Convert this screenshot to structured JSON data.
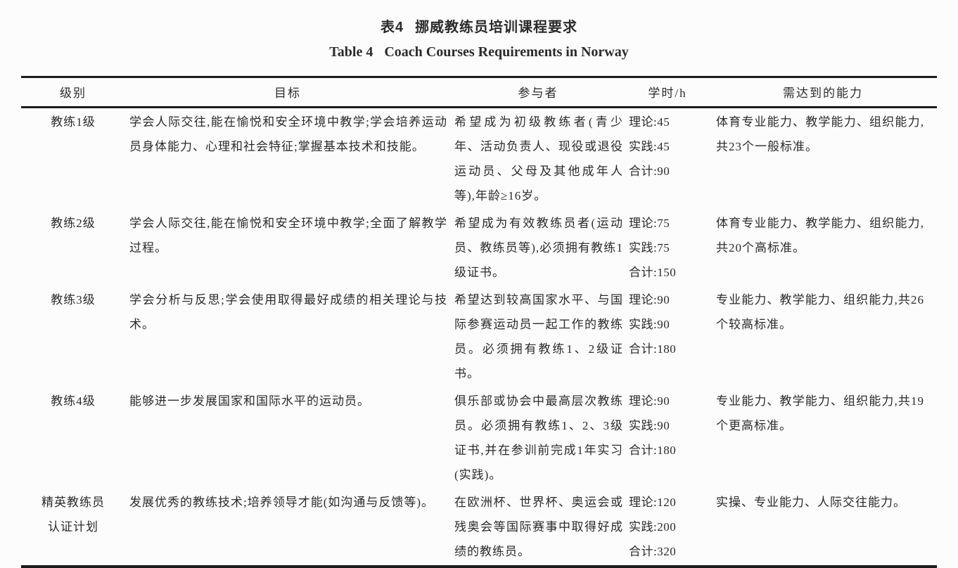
{
  "colors": {
    "background": "#fcfcfc",
    "text": "#2b2b2b",
    "rule": "#1b1b1b"
  },
  "caption": {
    "cn_label": "表4",
    "cn_text": "挪威教练员培训课程要求",
    "en_label": "Table 4",
    "en_text": "Coach Courses Requirements in Norway"
  },
  "table": {
    "headers": [
      "级别",
      "目标",
      "参与者",
      "学时/h",
      "需达到的能力"
    ],
    "rows": [
      {
        "level": "教练1级",
        "goal": "学会人际交往,能在愉悦和安全环境中教学;学会培养运动员身体能力、心理和社会特征;掌握基本技术和技能。",
        "participants": "希望成为初级教练者(青少年、活动负责人、现役或退役运动员、父母及其他成年人等),年龄≥16岁。",
        "hours": "理论:45\n实践:45\n合计:90",
        "competency": "体育专业能力、教学能力、组织能力,共23个一般标准。"
      },
      {
        "level": "教练2级",
        "goal": "学会人际交往,能在愉悦和安全环境中教学;全面了解教学过程。",
        "participants": "希望成为有效教练员者(运动员、教练员等),必须拥有教练1级证书。",
        "hours": "理论:75\n实践:75\n合计:150",
        "competency": "体育专业能力、教学能力、组织能力,共20个高标准。"
      },
      {
        "level": "教练3级",
        "goal": "学会分析与反思;学会使用取得最好成绩的相关理论与技术。",
        "participants": "希望达到较高国家水平、与国际参赛运动员一起工作的教练员。必须拥有教练1、2级证书。",
        "hours": "理论:90\n实践:90\n合计:180",
        "competency": "专业能力、教学能力、组织能力,共26个较高标准。"
      },
      {
        "level": "教练4级",
        "goal": "能够进一步发展国家和国际水平的运动员。",
        "participants": "俱乐部或协会中最高层次教练员。必须拥有教练1、2、3级证书,并在参训前完成1年实习(实践)。",
        "hours": "理论:90\n实践:90\n合计:180",
        "competency": "专业能力、教学能力、组织能力,共19个更高标准。"
      },
      {
        "level": "精英教练员\n认证计划",
        "goal": "发展优秀的教练技术;培养领导才能(如沟通与反馈等)。",
        "participants": "在欧洲杯、世界杯、奥运会或残奥会等国际赛事中取得好成绩的教练员。",
        "hours": "理论:120\n实践:200\n合计:320",
        "competency": "实操、专业能力、人际交往能力。"
      }
    ]
  }
}
